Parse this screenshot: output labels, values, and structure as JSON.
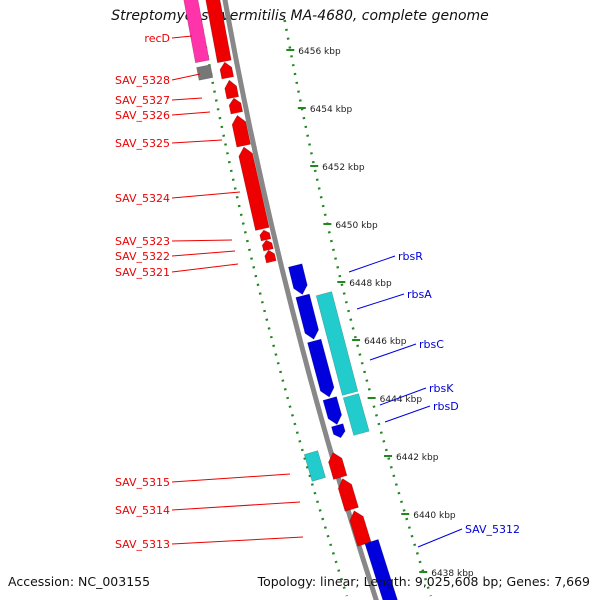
{
  "title": "Streptomyces avermitilis MA-4680, complete genome",
  "footer": {
    "accession": "Accession: NC_003155",
    "summary": "Topology: linear; Length: 9,025,608 bp; Genes: 7,669"
  },
  "colors": {
    "forward_cds": "#ee0000",
    "reverse_cds": "#0000dd",
    "forward_rna_like": "#ff33aa",
    "reverse_rna_like": "#22cccc",
    "other": "#777777",
    "backbone": "#888888",
    "ruler": "#228822"
  },
  "ruler_ticks": [
    "6456 kbp",
    "6454 kbp",
    "6452 kbp",
    "6450 kbp",
    "6448 kbp",
    "6446 kbp",
    "6444 kbp",
    "6442 kbp",
    "6440 kbp",
    "6438 kbp"
  ],
  "left_labels": [
    "recD",
    "SAV_5328",
    "SAV_5327",
    "SAV_5326",
    "SAV_5325",
    "SAV_5324",
    "SAV_5323",
    "SAV_5322",
    "SAV_5321",
    "SAV_5315",
    "SAV_5314",
    "SAV_5313"
  ],
  "right_labels": [
    "rbsR",
    "rbsA",
    "rbsC",
    "rbsK",
    "rbsD",
    "SAV_5312"
  ]
}
